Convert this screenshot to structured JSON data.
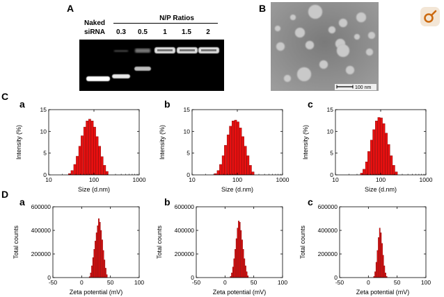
{
  "panels": {
    "A": "A",
    "B": "B",
    "C": "C",
    "D": "D",
    "sub": [
      "a",
      "b",
      "c"
    ]
  },
  "gel": {
    "naked_line1": "Naked",
    "naked_line2": "siRNA",
    "ratio_header": "N/P Ratios",
    "ratios": [
      "0.3",
      "0.5",
      "1",
      "1.5",
      "2"
    ]
  },
  "tem": {
    "scale_bar_label": "100 nm"
  },
  "colors": {
    "bar_fill": "#e81010",
    "bar_stroke": "#7a0000",
    "gel_bg": "#000000",
    "tem_bg": "#9a9a9a",
    "badge_bg": "#f3e6d6",
    "badge_icon": "#cc6a10"
  },
  "icons": {
    "corner": "female-symbol-icon"
  },
  "chart_data": [
    {
      "id": "Ca",
      "type": "bar",
      "scale": "log",
      "xlabel": "Size (d.nm)",
      "ylabel": "Intensity (%)",
      "xlim": [
        10,
        1000
      ],
      "ylim": [
        0,
        15
      ],
      "xticks": [
        "10",
        "100",
        "1000"
      ],
      "yticks": [
        "0",
        "5",
        "10",
        "15"
      ],
      "x": [
        29,
        33,
        38,
        43,
        49,
        55,
        63,
        71,
        81,
        92,
        104,
        118,
        134,
        152,
        173,
        196
      ],
      "values": [
        0.3,
        1.0,
        2.4,
        4.3,
        6.6,
        9.0,
        11.0,
        12.4,
        12.8,
        12.4,
        11.0,
        8.8,
        6.6,
        4.2,
        2.2,
        0.8
      ]
    },
    {
      "id": "Cb",
      "type": "bar",
      "scale": "log",
      "xlabel": "Size (d.nm)",
      "ylabel": "Intensity (%)",
      "xlim": [
        10,
        1000
      ],
      "ylim": [
        0,
        15
      ],
      "xticks": [
        "10",
        "100",
        "1000"
      ],
      "yticks": [
        "0",
        "5",
        "10",
        "15"
      ],
      "x": [
        33,
        38,
        43,
        49,
        55,
        63,
        71,
        81,
        92,
        104,
        118,
        134,
        152,
        173,
        196,
        223
      ],
      "values": [
        0.3,
        1.0,
        2.4,
        4.4,
        6.8,
        9.2,
        11.2,
        12.4,
        12.6,
        12.2,
        10.8,
        8.8,
        6.6,
        4.4,
        2.2,
        0.7
      ]
    },
    {
      "id": "Cc",
      "type": "bar",
      "scale": "log",
      "xlabel": "Size (d.nm)",
      "ylabel": "Intensity (%)",
      "xlim": [
        10,
        1000
      ],
      "ylim": [
        0,
        15
      ],
      "xticks": [
        "10",
        "100",
        "1000"
      ],
      "yticks": [
        "0",
        "5",
        "10",
        "15"
      ],
      "x": [
        38,
        43,
        49,
        55,
        63,
        71,
        81,
        92,
        104,
        118,
        134,
        152,
        173,
        196,
        223
      ],
      "values": [
        0.4,
        1.3,
        3.0,
        5.4,
        8.0,
        10.4,
        12.4,
        13.2,
        13.1,
        11.8,
        9.6,
        7.0,
        4.4,
        2.2,
        0.7
      ]
    },
    {
      "id": "Da",
      "type": "bar",
      "xlabel": "Zeta potential (mV)",
      "ylabel": "Total counts",
      "xlim": [
        -50,
        100
      ],
      "ylim": [
        0,
        600000
      ],
      "xticks": [
        "-50",
        "0",
        "50",
        "100"
      ],
      "yticks": [
        "0",
        "200000",
        "400000",
        "600000"
      ],
      "x": [
        14,
        16,
        18,
        20,
        22,
        24,
        26,
        28,
        30,
        32,
        34,
        36,
        38,
        40,
        42,
        44
      ],
      "values": [
        8000,
        40000,
        100000,
        170000,
        240000,
        310000,
        380000,
        440000,
        500000,
        470000,
        400000,
        320000,
        230000,
        150000,
        80000,
        25000
      ]
    },
    {
      "id": "Db",
      "type": "bar",
      "xlabel": "Zeta potential (mV)",
      "ylabel": "Total counts",
      "xlim": [
        -50,
        100
      ],
      "ylim": [
        0,
        600000
      ],
      "xticks": [
        "-50",
        "0",
        "50",
        "100"
      ],
      "yticks": [
        "0",
        "200000",
        "400000",
        "600000"
      ],
      "x": [
        10,
        12,
        14,
        16,
        18,
        20,
        22,
        24,
        26,
        28,
        30,
        32,
        34,
        36,
        38,
        40
      ],
      "values": [
        10000,
        40000,
        90000,
        160000,
        240000,
        330000,
        420000,
        480000,
        470000,
        400000,
        320000,
        240000,
        160000,
        100000,
        50000,
        15000
      ]
    },
    {
      "id": "Dc",
      "type": "bar",
      "xlabel": "Zeta potential (mV)",
      "ylabel": "Total counts",
      "xlim": [
        -50,
        100
      ],
      "ylim": [
        0,
        600000
      ],
      "xticks": [
        "-50",
        "0",
        "50",
        "100"
      ],
      "yticks": [
        "0",
        "200000",
        "400000",
        "600000"
      ],
      "x": [
        10,
        12,
        14,
        16,
        18,
        20,
        22,
        24,
        26,
        28,
        30,
        32
      ],
      "values": [
        10000,
        50000,
        130000,
        230000,
        340000,
        420000,
        380000,
        290000,
        190000,
        100000,
        40000,
        10000
      ]
    }
  ]
}
